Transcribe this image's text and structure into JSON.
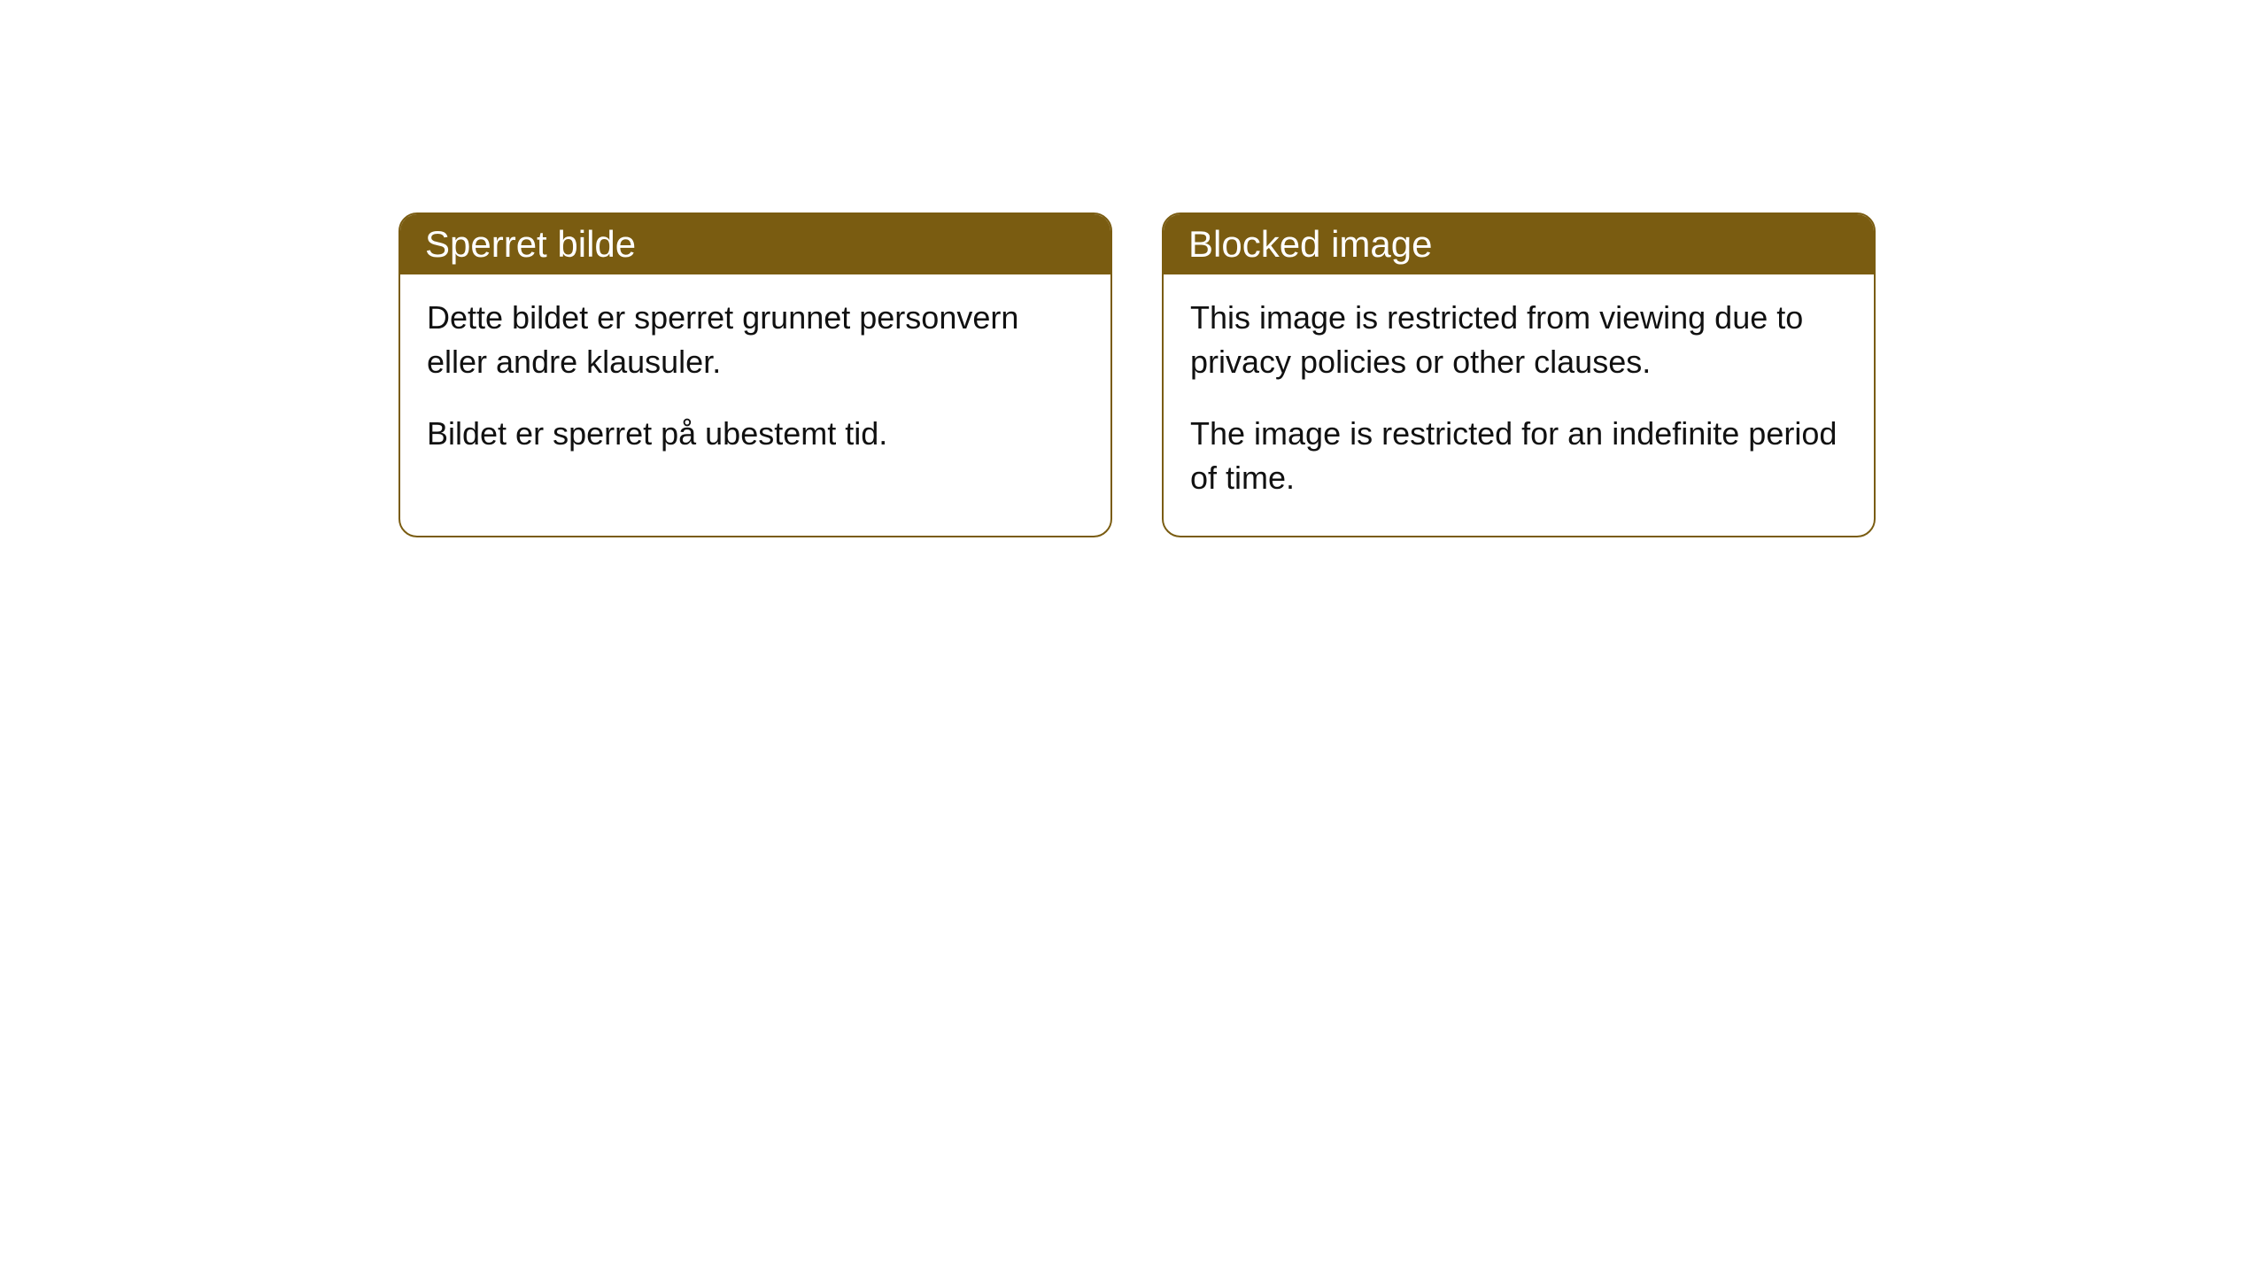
{
  "cards": [
    {
      "title": "Sperret bilde",
      "paragraph1": "Dette bildet er sperret grunnet personvern eller andre klausuler.",
      "paragraph2": "Bildet er sperret på ubestemt tid."
    },
    {
      "title": "Blocked image",
      "paragraph1": "This image is restricted from viewing due to privacy policies or other clauses.",
      "paragraph2": "The image is restricted for an indefinite period of time."
    }
  ],
  "styling": {
    "headerBackgroundColor": "#7a5c11",
    "headerTextColor": "#ffffff",
    "cardBorderColor": "#7a5c11",
    "cardBackgroundColor": "#ffffff",
    "bodyTextColor": "#111111",
    "bodyBackgroundColor": "#ffffff",
    "borderRadius": 21,
    "titleFontSize": 42,
    "bodyFontSize": 36
  }
}
